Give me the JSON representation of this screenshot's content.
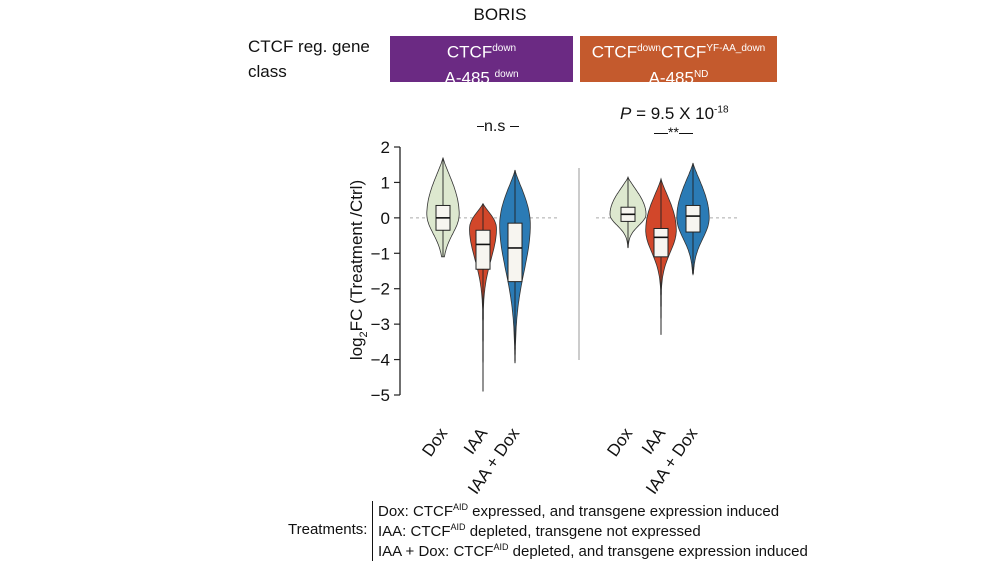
{
  "title": "BORIS",
  "class_label": "CTCF reg. gene class",
  "classes": [
    {
      "line1_main": "CTCF",
      "line1_sup": "down",
      "line2_main": "A-485",
      "line2_sup": "down",
      "color": "#6b2a83"
    },
    {
      "line1_main": "CTCF",
      "line1_sup": "down",
      "line1_main2": "CTCF",
      "line1_sup2": "YF-AA_down",
      "line2_main": "A-485",
      "line2_sup": "ND",
      "color": "#c45a2d"
    }
  ],
  "stats": {
    "left": "n.s",
    "right_p_prefix": "P",
    "right_p_value": " = 9.5 X 10",
    "right_p_exp": "-18",
    "right_sig": "**"
  },
  "colors": {
    "dox": "#dde8cf",
    "iaa": "#d2472a",
    "iaa_dox": "#2b7bb5"
  },
  "legend": {
    "title": "Treatments:",
    "lines": [
      {
        "pre": "Dox: CTCF",
        "sup": "AID",
        "post": " expressed, and transgene expression induced"
      },
      {
        "pre": "IAA: CTCF",
        "sup": "AID",
        "post": " depleted, transgene not expressed"
      },
      {
        "pre": "IAA + Dox: CTCF",
        "sup": "AID",
        "post": " depleted, and transgene expression induced"
      }
    ]
  },
  "chart_data": {
    "type": "violin",
    "ylabel": "log2FC (Treatment /Ctrl)",
    "ylabel_main": "log",
    "ylabel_sub": "2",
    "ylabel_rest": "FC (Treatment /Ctrl)",
    "ylim": [
      -5,
      2
    ],
    "yticks": [
      2,
      1,
      0,
      -1,
      -2,
      -3,
      -4,
      -5
    ],
    "ytick_labels": [
      "2",
      "1",
      "0",
      "−1",
      "−2",
      "−3",
      "−4",
      "−5"
    ],
    "reference_line": 0,
    "categories": [
      "Dox",
      "IAA",
      "IAA + Dox"
    ],
    "groups": [
      {
        "name": "CTCF down / A-485 down",
        "violins": [
          {
            "category": "Dox",
            "min": -1.1,
            "q1": -0.35,
            "median": 0.0,
            "q3": 0.35,
            "max": 1.7,
            "max_half_width": 0.9,
            "mode": 0.1
          },
          {
            "category": "IAA",
            "min": -4.9,
            "q1": -1.45,
            "median": -0.75,
            "q3": -0.35,
            "max": 0.4,
            "max_half_width": 0.75,
            "mode": -0.3
          },
          {
            "category": "IAA + Dox",
            "min": -4.1,
            "q1": -1.8,
            "median": -0.85,
            "q3": -0.15,
            "max": 1.35,
            "max_half_width": 0.85,
            "mode": -0.2
          }
        ]
      },
      {
        "name": "CTCF down CTCF YF-AA_down / A-485 ND",
        "violins": [
          {
            "category": "Dox",
            "min": -0.85,
            "q1": -0.1,
            "median": 0.1,
            "q3": 0.3,
            "max": 1.15,
            "max_half_width": 1.0,
            "mode": 0.1
          },
          {
            "category": "IAA",
            "min": -3.3,
            "q1": -1.1,
            "median": -0.55,
            "q3": -0.3,
            "max": 1.1,
            "max_half_width": 0.85,
            "mode": -0.35
          },
          {
            "category": "IAA + Dox",
            "min": -1.6,
            "q1": -0.4,
            "median": 0.05,
            "q3": 0.35,
            "max": 1.55,
            "max_half_width": 0.9,
            "mode": 0.0
          }
        ]
      }
    ]
  }
}
